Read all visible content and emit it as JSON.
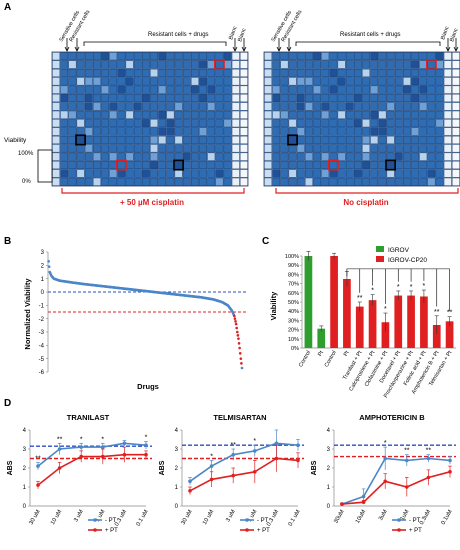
{
  "panel_labels": {
    "a": "A",
    "b": "B",
    "c": "C",
    "d": "D"
  },
  "panel_a": {
    "top_labels": {
      "sensitive": "Sensitive cells",
      "resistant": "Resistant cells",
      "drugs": "Resistant cells + drugs",
      "blanc1": "Blanc",
      "blanc2": "Blanc"
    },
    "viability_legend": {
      "title": "Viability",
      "top": "100%",
      "bottom": "0%"
    },
    "plate_left_caption": "+ 50 µM cisplatin",
    "plate_right_caption": "No cisplatin",
    "colors": {
      "well": "#2e6db4",
      "plate_bg": "#5f93cc",
      "highlight_red": "#e02020",
      "caption_red": "#e02020"
    }
  },
  "chart_data": [
    {
      "type": "scatter",
      "panel": "B",
      "ylabel": "Normalized Viability",
      "xlabel": "Drugs",
      "ylim": [
        -6,
        3
      ],
      "yticks": [
        -6,
        -5,
        -4,
        -3,
        -2,
        -1,
        0,
        1,
        2,
        3
      ],
      "threshold_blue": 0,
      "threshold_red": -1.5,
      "points": [
        [
          1,
          2.3
        ],
        [
          3,
          1.5
        ],
        [
          6,
          1.2
        ],
        [
          10,
          1.0
        ],
        [
          20,
          0.85
        ],
        [
          40,
          0.72
        ],
        [
          60,
          0.6
        ],
        [
          80,
          0.5
        ],
        [
          100,
          0.4
        ],
        [
          120,
          0.3
        ],
        [
          140,
          0.2
        ],
        [
          160,
          0.1
        ],
        [
          180,
          0.0
        ],
        [
          200,
          -0.1
        ],
        [
          220,
          -0.2
        ],
        [
          240,
          -0.3
        ],
        [
          260,
          -0.4
        ],
        [
          280,
          -0.55
        ],
        [
          295,
          -0.75
        ],
        [
          305,
          -1.0
        ],
        [
          312,
          -1.4
        ],
        [
          316,
          -1.8
        ],
        [
          319,
          -2.4
        ],
        [
          321,
          -3.0
        ],
        [
          323,
          -3.5
        ],
        [
          325,
          -4.2
        ],
        [
          327,
          -5.0
        ],
        [
          329,
          -5.7
        ]
      ],
      "red_from_index": 21
    },
    {
      "type": "bar",
      "panel": "C",
      "ylabel": "Viability",
      "ylim": [
        0,
        1.0
      ],
      "yticks": [
        "0%",
        "10%",
        "20%",
        "30%",
        "40%",
        "50%",
        "60%",
        "70%",
        "80%",
        "90%",
        "100%"
      ],
      "legend": [
        {
          "name": "IGROV",
          "color": "#2e9e2e"
        },
        {
          "name": "IGROV-CP20",
          "color": "#e02020"
        }
      ],
      "categories": [
        "Control",
        "Pt",
        "Control",
        "Pt",
        "Tranilast + Pt",
        "Calciprotriene + Pt",
        "Clofazimine + Pt",
        "Docetaxel + Pt",
        "Prochlorperazine + Pt",
        "Folinic acid + Pt",
        "Amphotericin B + Pt",
        "Telmisartan + Pt"
      ],
      "values": [
        1.0,
        0.21,
        1.0,
        0.75,
        0.45,
        0.52,
        0.28,
        0.57,
        0.57,
        0.56,
        0.25,
        0.29
      ],
      "errors": [
        0.05,
        0.03,
        0.03,
        0.08,
        0.05,
        0.06,
        0.1,
        0.05,
        0.05,
        0.07,
        0.1,
        0.05
      ],
      "groups": [
        "IGROV",
        "IGROV",
        "IGROV-CP20",
        "IGROV-CP20",
        "IGROV-CP20",
        "IGROV-CP20",
        "IGROV-CP20",
        "IGROV-CP20",
        "IGROV-CP20",
        "IGROV-CP20",
        "IGROV-CP20",
        "IGROV-CP20"
      ],
      "significance": [
        "",
        "",
        "",
        "",
        "**",
        "*",
        "*",
        "*",
        "*",
        "*",
        "**",
        "**"
      ]
    },
    {
      "type": "line",
      "panel": "D1",
      "title": "TRANILAST",
      "ylabel": "ABS",
      "ylim": [
        0,
        4
      ],
      "yticks": [
        0,
        1,
        2,
        3,
        4
      ],
      "categories": [
        "30 uM",
        "10 uM",
        "3 uM",
        "1 uM",
        "0.3 uM",
        "0.1 uM"
      ],
      "series": [
        {
          "name": "- PT",
          "values": [
            2.1,
            3.0,
            3.1,
            3.1,
            3.3,
            3.2
          ],
          "errors": [
            0.2,
            0.3,
            0.2,
            0.2,
            0.15,
            0.2
          ],
          "color": "#4a86c8"
        },
        {
          "name": "+ PT",
          "values": [
            1.1,
            2.0,
            2.6,
            2.6,
            2.7,
            2.7
          ],
          "errors": [
            0.2,
            0.3,
            0.3,
            0.4,
            0.4,
            0.2
          ],
          "color": "#e02020"
        }
      ],
      "ref_blue": 3.15,
      "ref_red": 2.5,
      "significance": [
        "**",
        "**",
        "*",
        "*",
        "",
        "*"
      ]
    },
    {
      "type": "line",
      "panel": "D2",
      "title": "TELMISARTAN",
      "ylabel": "ABS",
      "ylim": [
        0,
        4
      ],
      "yticks": [
        0,
        1,
        2,
        3,
        4
      ],
      "categories": [
        "30 uM",
        "10 uM",
        "3 uM",
        "1 uM",
        "0.3 uM",
        "0.1 uM"
      ],
      "series": [
        {
          "name": "- PT",
          "values": [
            1.3,
            2.1,
            2.7,
            2.9,
            3.3,
            3.2
          ],
          "errors": [
            0.2,
            0.3,
            0.3,
            0.3,
            0.7,
            0.3
          ],
          "color": "#4a86c8"
        },
        {
          "name": "+ PT",
          "values": [
            0.8,
            1.4,
            1.6,
            1.8,
            2.5,
            2.4
          ],
          "errors": [
            0.2,
            0.4,
            0.4,
            0.6,
            0.7,
            0.4
          ],
          "color": "#e02020"
        }
      ],
      "ref_blue": 3.2,
      "ref_red": 2.5,
      "significance": [
        "",
        "*",
        "**",
        "*",
        "",
        ""
      ]
    },
    {
      "type": "line",
      "panel": "D3",
      "title": "AMPHOTERICIN B",
      "ylabel": "ABS",
      "ylim": [
        0,
        4
      ],
      "yticks": [
        0,
        1,
        2,
        3,
        4
      ],
      "categories": [
        "30uM",
        "10uM",
        "3uM",
        "1uM",
        "0.3uM",
        "0.1uM"
      ],
      "series": [
        {
          "name": "- PT",
          "values": [
            0.1,
            0.5,
            2.5,
            2.4,
            2.5,
            2.4
          ],
          "errors": [
            0.05,
            0.4,
            0.6,
            0.3,
            0.2,
            0.2
          ],
          "color": "#4a86c8"
        },
        {
          "name": "+ PT",
          "values": [
            0.1,
            0.2,
            1.3,
            1.0,
            1.5,
            1.8
          ],
          "errors": [
            0.05,
            0.1,
            0.4,
            0.5,
            0.4,
            0.3
          ],
          "color": "#e02020"
        }
      ],
      "ref_blue": 3.2,
      "ref_red": 2.6,
      "significance": [
        "",
        "",
        "*",
        "**",
        "**",
        ""
      ]
    }
  ]
}
